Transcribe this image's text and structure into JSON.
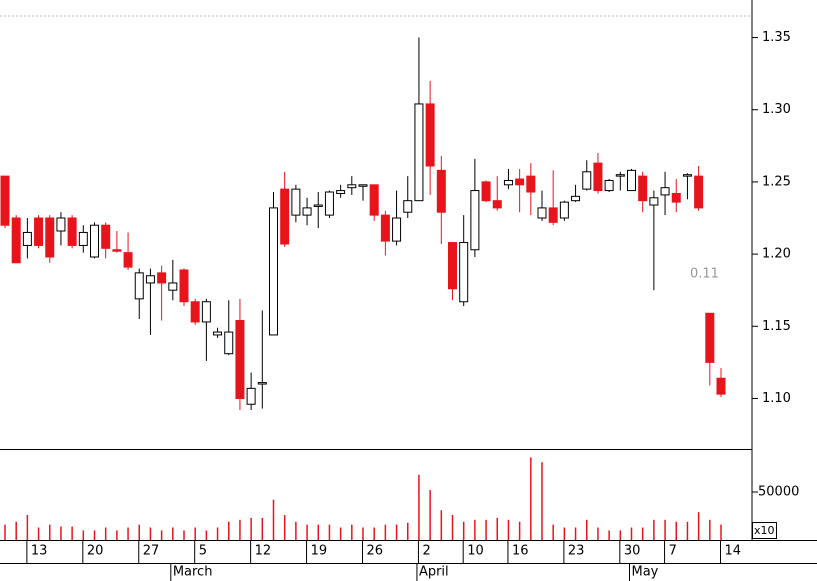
{
  "chart_data": {
    "type": "candlestick",
    "categories": [
      null,
      null,
      "13",
      null,
      null,
      null,
      null,
      "20",
      null,
      null,
      null,
      null,
      "27",
      null,
      null,
      null,
      null,
      "5",
      null,
      null,
      null,
      null,
      "12",
      null,
      null,
      null,
      null,
      "19",
      null,
      null,
      null,
      null,
      "26",
      null,
      null,
      null,
      null,
      "2",
      null,
      null,
      null,
      "10",
      null,
      null,
      null,
      "16",
      null,
      null,
      null,
      null,
      "23",
      null,
      null,
      null,
      null,
      "30",
      null,
      null,
      null,
      "7",
      null,
      null,
      null,
      null,
      "14"
    ],
    "months": [
      {
        "label": "March",
        "at": 15
      },
      {
        "label": "April",
        "at": 37
      },
      {
        "label": "May",
        "at": 56
      }
    ],
    "open": [
      1.254,
      1.225,
      1.206,
      1.225,
      1.225,
      1.216,
      1.225,
      1.206,
      1.198,
      1.22,
      1.203,
      1.201,
      1.169,
      1.18,
      1.187,
      1.175,
      1.189,
      1.167,
      1.153,
      1.144,
      1.131,
      1.154,
      1.096,
      1.11,
      1.144,
      1.245,
      1.227,
      1.227,
      1.233,
      1.227,
      1.242,
      1.246,
      1.247,
      1.248,
      1.227,
      1.209,
      1.229,
      1.237,
      1.304,
      1.258,
      1.208,
      1.167,
      1.203,
      1.25,
      1.237,
      1.248,
      1.252,
      1.254,
      1.225,
      1.232,
      1.225,
      1.237,
      1.245,
      1.263,
      1.244,
      1.254,
      1.244,
      1.254,
      1.234,
      1.241,
      1.242,
      1.254,
      1.254,
      1.159,
      1.114
    ],
    "high": [
      1.254,
      1.227,
      1.225,
      1.227,
      1.227,
      1.229,
      1.227,
      1.22,
      1.222,
      1.222,
      1.216,
      1.215,
      1.19,
      1.19,
      1.192,
      1.196,
      1.19,
      1.169,
      1.169,
      1.149,
      1.168,
      1.169,
      1.118,
      1.161,
      1.243,
      1.257,
      1.248,
      1.239,
      1.243,
      1.244,
      1.248,
      1.254,
      1.248,
      1.248,
      1.23,
      1.244,
      1.254,
      1.35,
      1.32,
      1.268,
      1.208,
      1.227,
      1.266,
      1.251,
      1.254,
      1.259,
      1.259,
      1.263,
      1.244,
      1.258,
      1.237,
      1.248,
      1.265,
      1.27,
      1.252,
      1.257,
      1.259,
      1.257,
      1.244,
      1.257,
      1.252,
      1.256,
      1.261,
      1.159,
      1.121
    ],
    "low": [
      1.218,
      1.194,
      1.197,
      1.204,
      1.194,
      1.206,
      1.204,
      1.201,
      1.197,
      1.197,
      1.201,
      1.189,
      1.155,
      1.144,
      1.154,
      1.168,
      1.164,
      1.151,
      1.126,
      1.142,
      1.13,
      1.092,
      1.092,
      1.093,
      1.144,
      1.205,
      1.222,
      1.22,
      1.218,
      1.225,
      1.239,
      1.241,
      1.237,
      1.223,
      1.199,
      1.206,
      1.225,
      1.237,
      1.241,
      1.207,
      1.168,
      1.164,
      1.198,
      1.236,
      1.23,
      1.245,
      1.229,
      1.227,
      1.223,
      1.22,
      1.223,
      1.236,
      1.244,
      1.242,
      1.243,
      1.244,
      1.244,
      1.229,
      1.175,
      1.227,
      1.229,
      1.238,
      1.23,
      1.109,
      1.101
    ],
    "close": [
      1.22,
      1.194,
      1.215,
      1.206,
      1.198,
      1.225,
      1.206,
      1.215,
      1.22,
      1.204,
      1.202,
      1.191,
      1.187,
      1.185,
      1.18,
      1.18,
      1.167,
      1.153,
      1.167,
      1.146,
      1.146,
      1.1,
      1.107,
      1.111,
      1.232,
      1.207,
      1.245,
      1.232,
      1.234,
      1.243,
      1.244,
      1.248,
      1.248,
      1.227,
      1.209,
      1.225,
      1.237,
      1.304,
      1.261,
      1.229,
      1.176,
      1.208,
      1.244,
      1.237,
      1.232,
      1.251,
      1.248,
      1.243,
      1.232,
      1.222,
      1.236,
      1.24,
      1.257,
      1.244,
      1.251,
      1.255,
      1.258,
      1.237,
      1.239,
      1.246,
      1.236,
      1.255,
      1.232,
      1.125,
      1.103
    ],
    "volume": [
      16000,
      19000,
      26000,
      13000,
      16000,
      14000,
      14000,
      10000,
      10000,
      13000,
      10000,
      13000,
      16000,
      13000,
      10000,
      13000,
      10000,
      13000,
      10000,
      13000,
      19000,
      21000,
      23000,
      23000,
      42000,
      26000,
      19000,
      16000,
      16000,
      16000,
      13000,
      16000,
      13000,
      13000,
      16000,
      16000,
      18000,
      68000,
      52000,
      31000,
      26000,
      19000,
      21000,
      21000,
      23000,
      21000,
      19000,
      86000,
      81000,
      16000,
      13000,
      13000,
      21000,
      13000,
      10000,
      10000,
      13000,
      13000,
      21000,
      21000,
      19000,
      19000,
      29000,
      21000,
      16000
    ],
    "up_color": "#ffffff",
    "down_color": "#e8141c",
    "volume_color": "#e8141c",
    "ylim": [
      1.065,
      1.376
    ],
    "yticks": [
      {
        "value": 1.1,
        "label": "1.10"
      },
      {
        "value": 1.15,
        "label": "1.15"
      },
      {
        "value": 1.2,
        "label": "1.20"
      },
      {
        "value": 1.25,
        "label": "1.25"
      },
      {
        "value": 1.3,
        "label": "1.30"
      },
      {
        "value": 1.35,
        "label": "1.35"
      }
    ],
    "y2lim": [
      0,
      93750
    ],
    "y2ticks": [
      50000
    ],
    "volume_scale_label": "x10",
    "annotation": "0.11"
  }
}
